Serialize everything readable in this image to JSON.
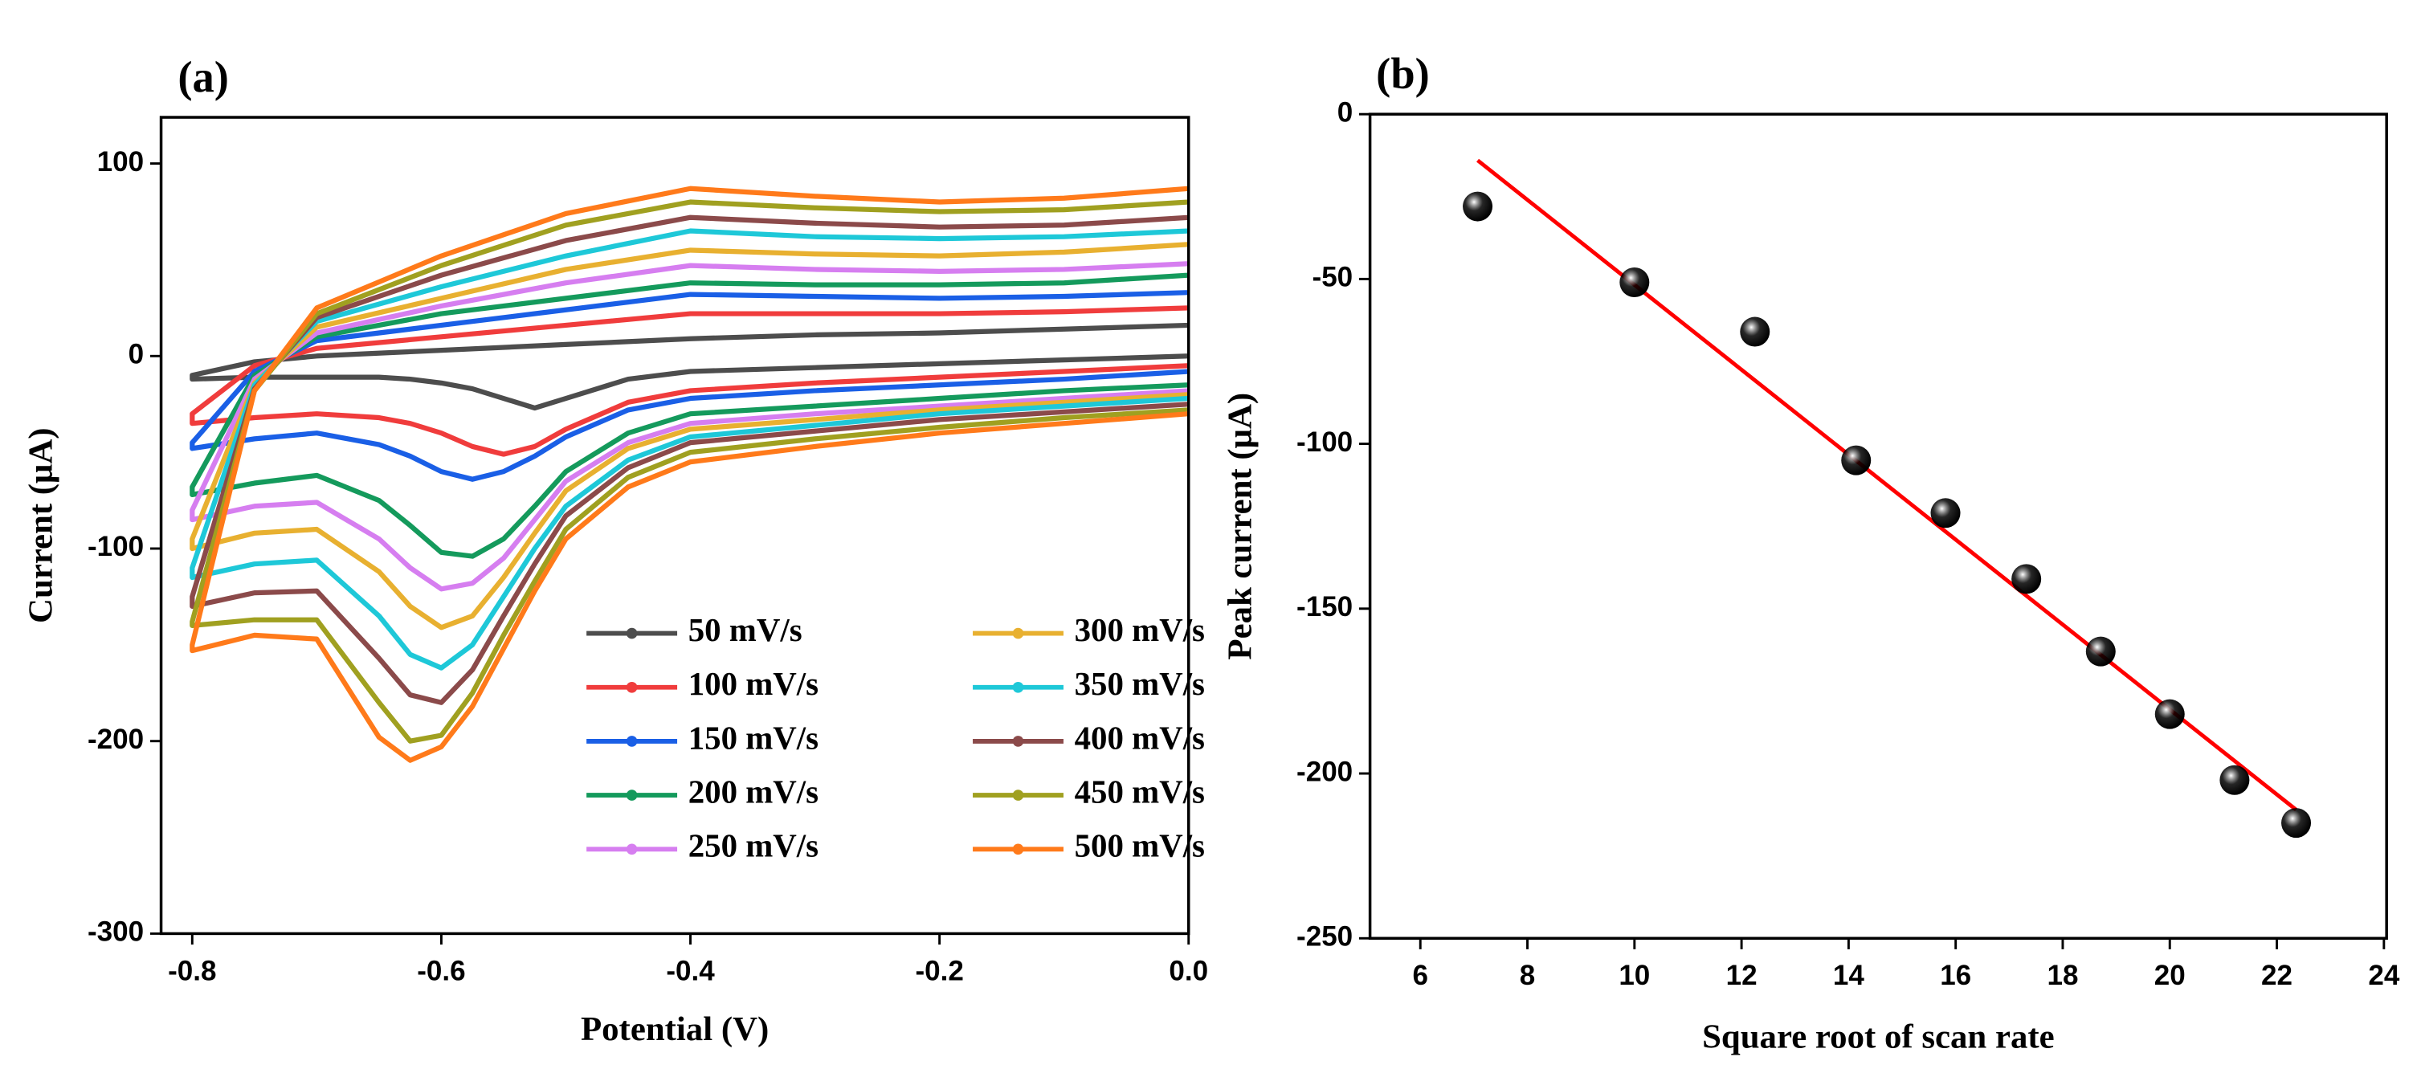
{
  "chart_data": [
    {
      "type": "line",
      "title": "(a)",
      "xlabel": "Potential (V)",
      "ylabel": "Current (μA)",
      "xlim": [
        -0.825,
        0.0
      ],
      "xticks": [
        -0.8,
        -0.6,
        -0.4,
        -0.2,
        {
          "value": 0,
          "label": "0.0"
        }
      ],
      "ylim": [
        -300,
        124
      ],
      "yticks": [
        -300,
        -200,
        -100,
        0,
        100
      ],
      "x": [
        0,
        -0.1,
        -0.2,
        -0.3,
        -0.4,
        -0.45,
        -0.5,
        -0.525,
        -0.55,
        -0.575,
        -0.6,
        -0.625,
        -0.65,
        -0.7,
        -0.75,
        -0.8,
        -0.8,
        -0.75,
        -0.7,
        -0.6,
        -0.5,
        -0.4,
        -0.3,
        -0.2,
        -0.1,
        0
      ],
      "series": [
        {
          "name": "50 mV/s",
          "color": "#4d4d4d",
          "values": [
            0,
            -2,
            -4,
            -6,
            -8,
            -12,
            -22,
            -27,
            -22,
            -17,
            -14,
            -12,
            -11,
            -11,
            -11,
            -12,
            -10,
            -3,
            0,
            3,
            6,
            9,
            11,
            12,
            14,
            16
          ]
        },
        {
          "name": "100 mV/s",
          "color": "#f03c3c",
          "values": [
            -5,
            -8,
            -11,
            -14,
            -18,
            -24,
            -38,
            -47,
            -51,
            -47,
            -40,
            -35,
            -32,
            -30,
            -32,
            -35,
            -30,
            -5,
            4,
            10,
            16,
            22,
            22,
            22,
            23,
            25
          ]
        },
        {
          "name": "150 mV/s",
          "color": "#1a5fe6",
          "values": [
            -8,
            -12,
            -15,
            -18,
            -22,
            -28,
            -42,
            -52,
            -60,
            -64,
            -60,
            -52,
            -46,
            -40,
            -43,
            -48,
            -45,
            -8,
            8,
            16,
            24,
            32,
            31,
            30,
            31,
            33
          ]
        },
        {
          "name": "200 mV/s",
          "color": "#149a5c",
          "values": [
            -15,
            -18,
            -22,
            -26,
            -30,
            -40,
            -60,
            -78,
            -95,
            -104,
            -102,
            -88,
            -75,
            -62,
            -66,
            -72,
            -68,
            -10,
            10,
            22,
            30,
            38,
            37,
            37,
            38,
            42
          ]
        },
        {
          "name": "250 mV/s",
          "color": "#d67ef0",
          "values": [
            -18,
            -22,
            -26,
            -30,
            -35,
            -45,
            -65,
            -85,
            -105,
            -118,
            -121,
            -110,
            -95,
            -76,
            -78,
            -85,
            -80,
            -12,
            12,
            26,
            38,
            47,
            45,
            44,
            45,
            48
          ]
        },
        {
          "name": "300 mV/s",
          "color": "#e8b030",
          "values": [
            -20,
            -24,
            -28,
            -33,
            -38,
            -48,
            -70,
            -92,
            -115,
            -135,
            -141,
            -130,
            -112,
            -90,
            -92,
            -100,
            -95,
            -14,
            15,
            30,
            45,
            55,
            53,
            52,
            54,
            58
          ]
        },
        {
          "name": "350 mV/s",
          "color": "#1ec8d8",
          "values": [
            -22,
            -26,
            -30,
            -36,
            -42,
            -54,
            -78,
            -100,
            -125,
            -150,
            -162,
            -155,
            -135,
            -106,
            -108,
            -115,
            -110,
            -15,
            18,
            36,
            52,
            65,
            62,
            61,
            62,
            65
          ]
        },
        {
          "name": "400 mV/s",
          "color": "#8b4a4a",
          "values": [
            -25,
            -29,
            -33,
            -39,
            -45,
            -58,
            -83,
            -108,
            -135,
            -163,
            -180,
            -176,
            -157,
            -122,
            -123,
            -130,
            -125,
            -17,
            20,
            42,
            60,
            72,
            69,
            67,
            68,
            72
          ]
        },
        {
          "name": "450 mV/s",
          "color": "#a0a020",
          "values": [
            -28,
            -32,
            -37,
            -43,
            -50,
            -63,
            -90,
            -117,
            -145,
            -175,
            -197,
            -200,
            -180,
            -137,
            -137,
            -140,
            -138,
            -18,
            22,
            47,
            68,
            80,
            77,
            75,
            76,
            80
          ]
        },
        {
          "name": "500 mV/s",
          "color": "#ff7a1a",
          "values": [
            -30,
            -35,
            -40,
            -47,
            -55,
            -68,
            -95,
            -122,
            -152,
            -182,
            -203,
            -210,
            -198,
            -147,
            -145,
            -153,
            -150,
            -18,
            25,
            52,
            74,
            87,
            83,
            80,
            82,
            87
          ]
        }
      ]
    },
    {
      "type": "scatter",
      "title": "(b)",
      "xlabel": "Square root of scan rate",
      "ylabel": "Peak current (μA)",
      "xlim": [
        5.06,
        24.05
      ],
      "xticks": [
        6,
        8,
        10,
        12,
        14,
        16,
        18,
        20,
        22,
        24
      ],
      "ylim": [
        -250,
        0
      ],
      "yticks": [
        -250,
        -200,
        -150,
        -100,
        -50,
        0
      ],
      "color": "#000000",
      "x": [
        7.07,
        10,
        12.25,
        14.14,
        15.81,
        17.32,
        18.71,
        20,
        21.21,
        22.36
      ],
      "values": [
        -28,
        -51,
        -66,
        -105,
        -121,
        -141,
        -163,
        -182,
        -202,
        -215
      ],
      "fit": {
        "color": "#ff0000",
        "x": [
          7.07,
          22.36
        ],
        "values": [
          -14,
          -211
        ]
      }
    }
  ]
}
